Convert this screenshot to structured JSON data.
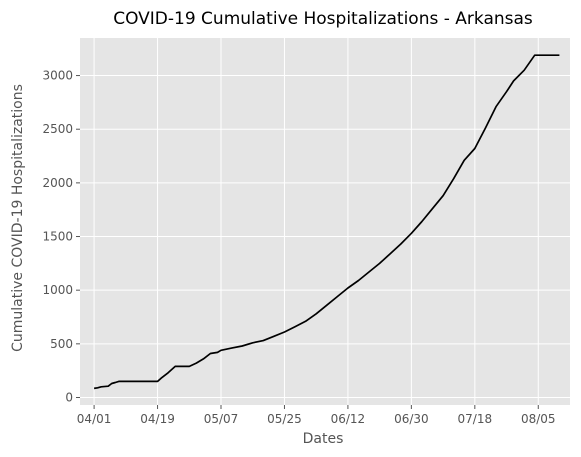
{
  "chart_data": {
    "type": "line",
    "title": "COVID-19 Cumulative Hospitalizations - Arkansas",
    "xlabel": "Dates",
    "ylabel": "Cumulative COVID-19 Hospitalizations",
    "x_tick_labels": [
      "04/01",
      "04/19",
      "05/07",
      "05/25",
      "06/12",
      "06/30",
      "07/18",
      "08/05"
    ],
    "x_ticks": [
      "2020-04-01",
      "2020-04-19",
      "2020-05-07",
      "2020-05-25",
      "2020-06-12",
      "2020-06-30",
      "2020-07-18",
      "2020-08-05"
    ],
    "xlim": [
      "2020-03-28",
      "2020-08-14"
    ],
    "y_ticks": [
      0,
      500,
      1000,
      1500,
      2000,
      2500,
      3000
    ],
    "ylim": [
      -70,
      3350
    ],
    "grid": true,
    "background": "#e5e5e5",
    "grid_color": "#ffffff",
    "line_color": "#000000",
    "series": [
      {
        "x": [
          "2020-04-01",
          "2020-04-02",
          "2020-04-03",
          "2020-04-05",
          "2020-04-06",
          "2020-04-07",
          "2020-04-08",
          "2020-04-10",
          "2020-04-13",
          "2020-04-16",
          "2020-04-19",
          "2020-04-20",
          "2020-04-22",
          "2020-04-24",
          "2020-04-26",
          "2020-04-28",
          "2020-04-30",
          "2020-05-02",
          "2020-05-04",
          "2020-05-06",
          "2020-05-07",
          "2020-05-10",
          "2020-05-13",
          "2020-05-16",
          "2020-05-19",
          "2020-05-22",
          "2020-05-25",
          "2020-05-28",
          "2020-05-31",
          "2020-06-03",
          "2020-06-06",
          "2020-06-09",
          "2020-06-12",
          "2020-06-15",
          "2020-06-18",
          "2020-06-21",
          "2020-06-24",
          "2020-06-27",
          "2020-06-30",
          "2020-07-03",
          "2020-07-06",
          "2020-07-09",
          "2020-07-12",
          "2020-07-15",
          "2020-07-18",
          "2020-07-21",
          "2020-07-24",
          "2020-07-27",
          "2020-07-29",
          "2020-08-01",
          "2020-08-04",
          "2020-08-06",
          "2020-08-09",
          "2020-08-11"
        ],
        "y": [
          85,
          90,
          100,
          105,
          130,
          140,
          150,
          150,
          150,
          150,
          150,
          180,
          230,
          290,
          290,
          290,
          320,
          360,
          410,
          420,
          440,
          460,
          480,
          510,
          530,
          570,
          610,
          660,
          710,
          780,
          860,
          940,
          1020,
          1090,
          1170,
          1250,
          1340,
          1430,
          1530,
          1640,
          1760,
          1880,
          2040,
          2210,
          2320,
          2510,
          2710,
          2850,
          2950,
          3050,
          3190,
          3190,
          3190,
          3190
        ]
      }
    ]
  }
}
